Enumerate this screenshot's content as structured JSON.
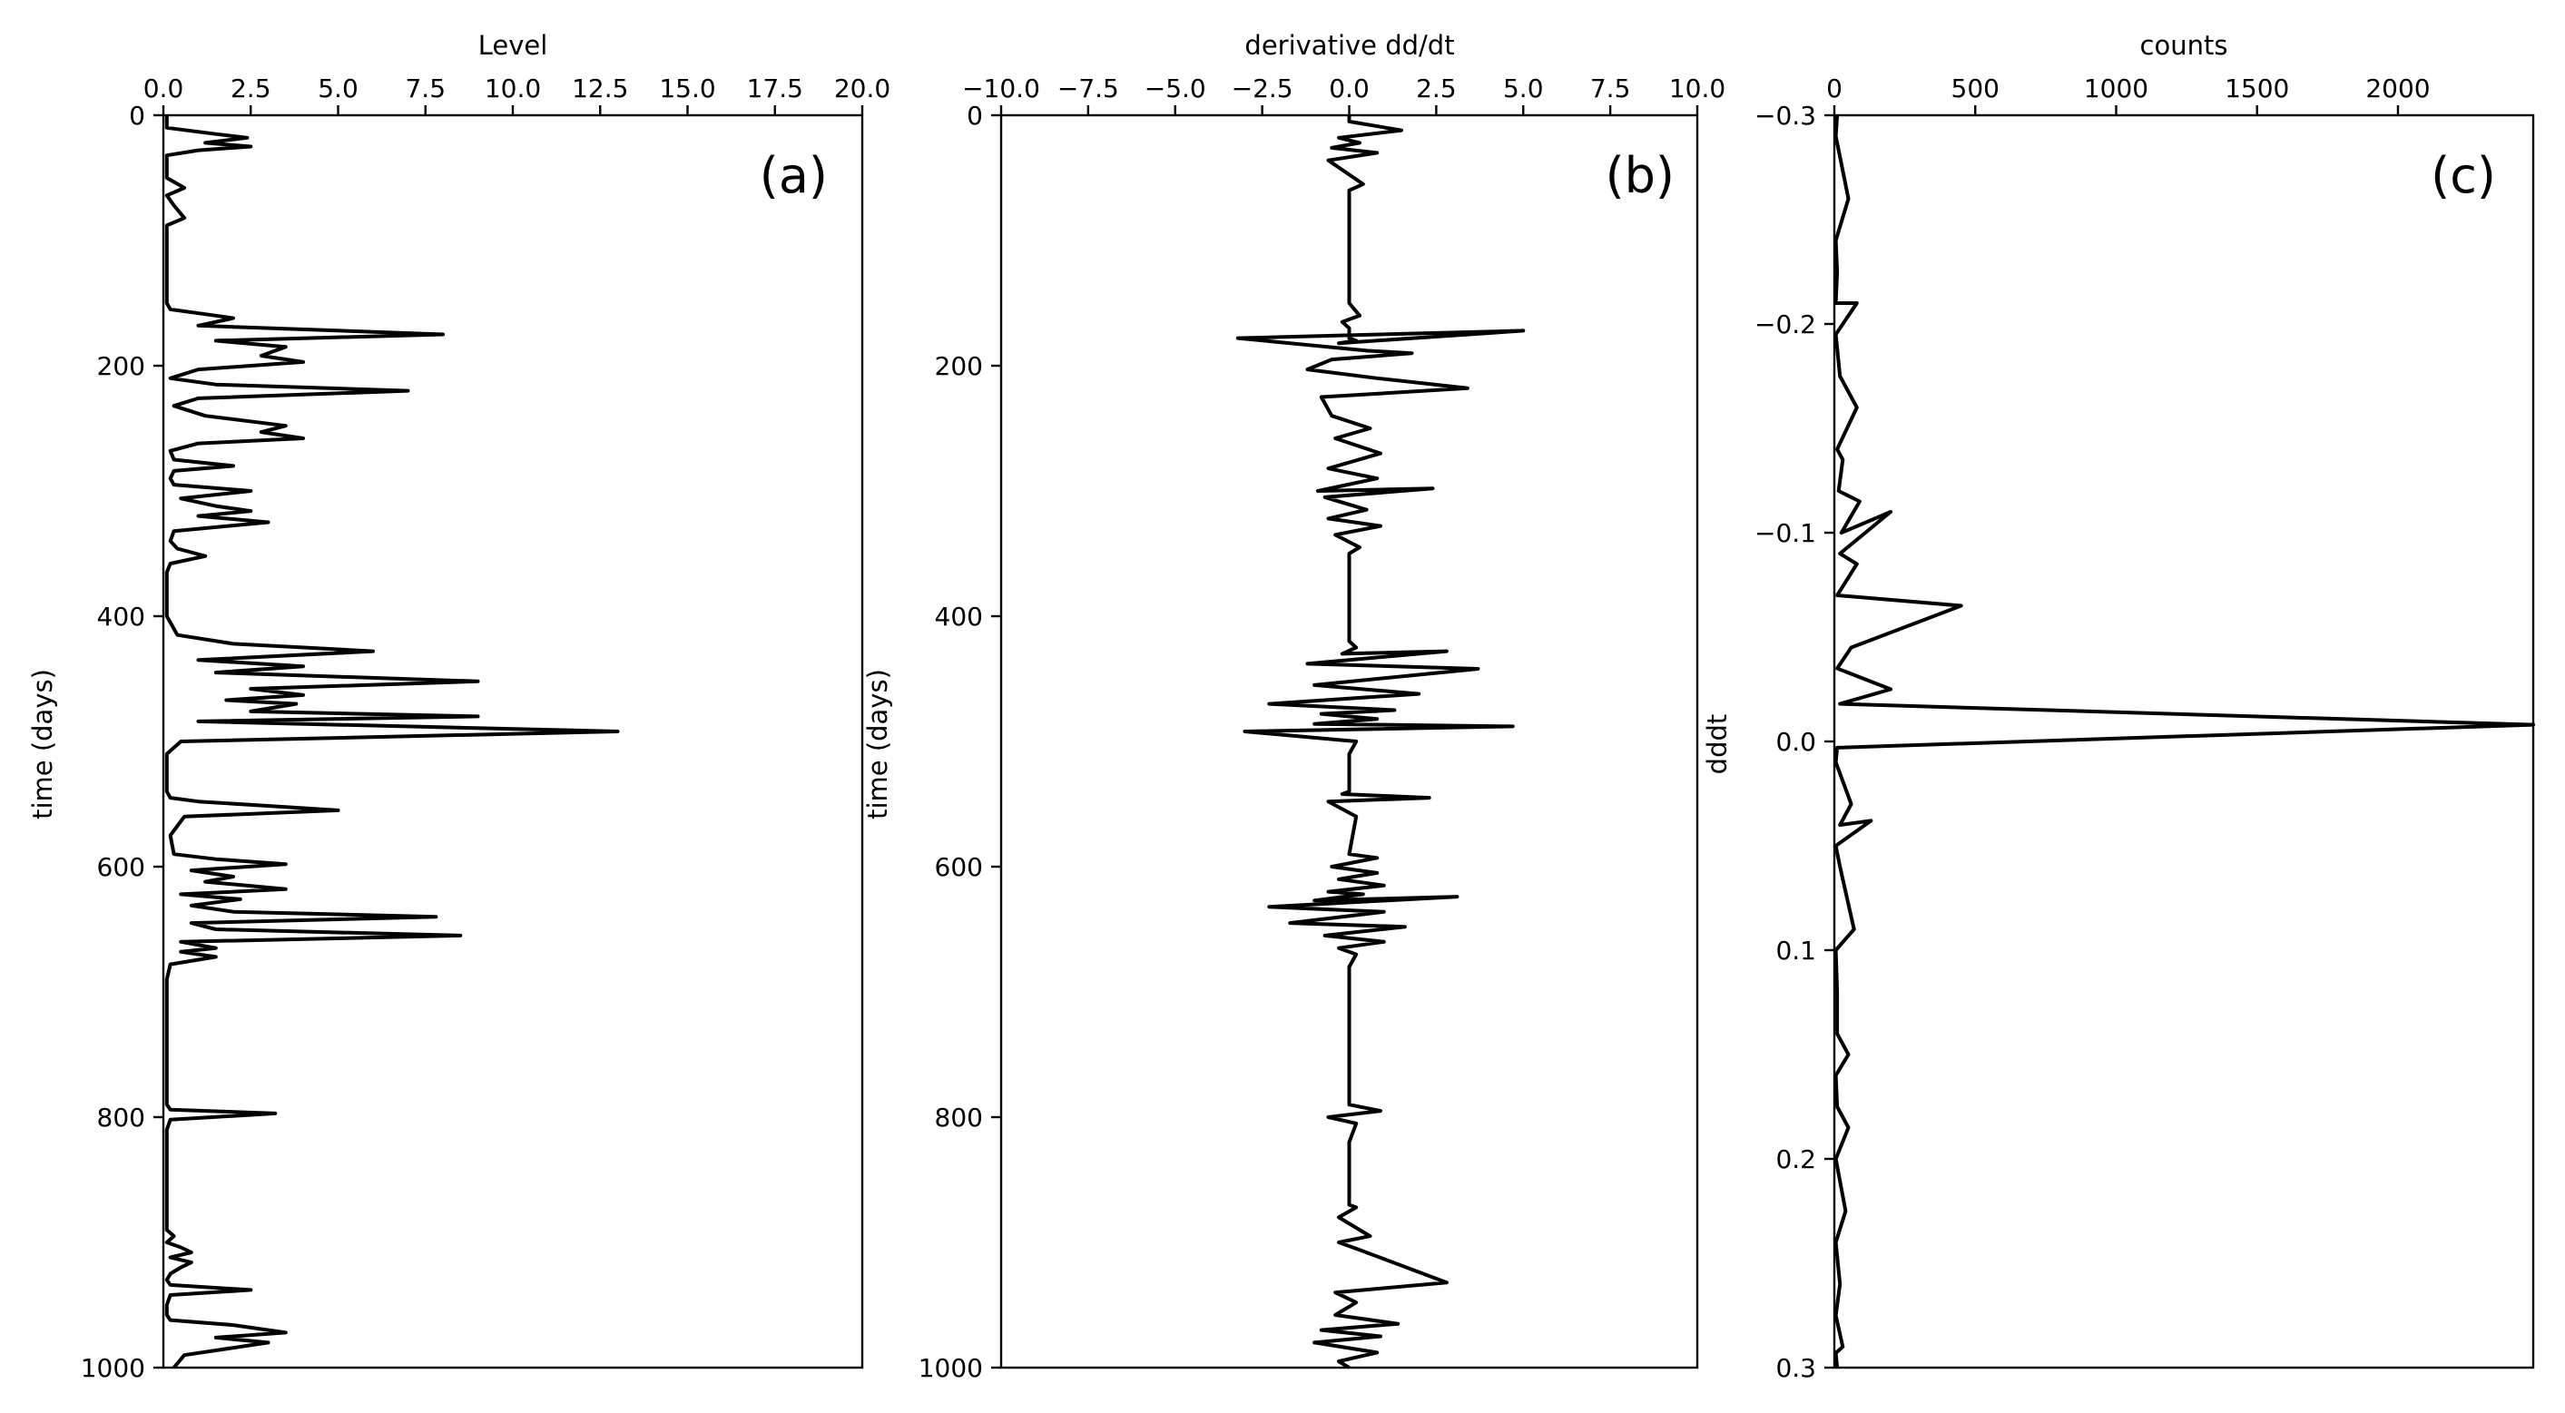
{
  "chart_data": [
    {
      "type": "line",
      "panel_label": "(a)",
      "xlabel": "Level",
      "ylabel": "time (days)",
      "xlim": [
        0,
        20
      ],
      "ylim": [
        0,
        1000
      ],
      "y_inverted": true,
      "x_ticks": [
        0,
        2.5,
        5,
        7.5,
        10,
        12.5,
        15,
        17.5,
        20
      ],
      "x_tick_labels": [
        "0.0",
        "2.5",
        "5.0",
        "7.5",
        "10.0",
        "12.5",
        "15.0",
        "17.5",
        "20.0"
      ],
      "y_ticks": [
        0,
        200,
        400,
        600,
        800,
        1000
      ],
      "y_tick_labels": [
        "0",
        "200",
        "400",
        "600",
        "800",
        "1000"
      ],
      "series": [
        {
          "x": [
            0.1,
            0.1,
            1.5,
            2.4,
            1.2,
            2.5,
            1.0,
            0.1,
            0.1,
            0.6,
            0.1,
            0.3,
            0.6,
            0.1,
            0.1,
            0.1,
            0.1,
            0.1,
            0.2,
            1.5,
            2.0,
            1.0,
            8.0,
            1.5,
            3.5,
            2.8,
            4.0,
            1.0,
            0.2,
            1.5,
            7.0,
            1.0,
            0.3,
            1.2,
            3.5,
            2.8,
            4.0,
            1.0,
            0.2,
            0.3,
            2.0,
            0.3,
            0.2,
            0.3,
            2.5,
            0.5,
            1.5,
            2.5,
            1.0,
            3.0,
            0.3,
            0.2,
            0.4,
            1.2,
            0.2,
            0.1,
            0.1,
            0.4,
            2.0,
            6.0,
            1.0,
            4.0,
            1.5,
            9.0,
            2.5,
            4.0,
            1.8,
            3.8,
            2.5,
            9.0,
            1.0,
            13.0,
            0.5,
            0.1,
            0.1,
            0.1,
            0.1,
            0.2,
            1.0,
            5.0,
            0.6,
            0.2,
            0.3,
            1.5,
            3.5,
            0.8,
            2.0,
            1.2,
            3.5,
            0.5,
            2.2,
            0.8,
            2.0,
            7.8,
            0.8,
            1.5,
            8.5,
            0.5,
            1.5,
            0.5,
            1.5,
            0.2,
            0.1,
            0.1,
            0.1,
            0.1,
            0.2,
            3.2,
            0.2,
            0.1,
            0.1,
            0.1,
            0.1,
            0.1,
            0.3,
            0.1,
            0.5,
            0.8,
            0.2,
            0.8,
            0.5,
            0.2,
            0.1,
            0.2,
            2.5,
            0.2,
            0.1,
            0.1,
            0.2,
            2.0,
            3.5,
            1.5,
            3.0,
            0.6,
            0.3
          ],
          "y": [
            0,
            10,
            15,
            18,
            22,
            25,
            28,
            32,
            50,
            58,
            64,
            72,
            82,
            88,
            100,
            120,
            140,
            150,
            155,
            160,
            162,
            168,
            175,
            180,
            185,
            192,
            197,
            203,
            210,
            215,
            220,
            226,
            232,
            240,
            248,
            253,
            258,
            262,
            268,
            275,
            280,
            284,
            290,
            295,
            300,
            306,
            312,
            316,
            320,
            325,
            332,
            340,
            346,
            352,
            358,
            365,
            400,
            415,
            422,
            428,
            435,
            440,
            445,
            452,
            458,
            463,
            467,
            470,
            476,
            480,
            484,
            492,
            500,
            510,
            520,
            530,
            540,
            545,
            548,
            555,
            560,
            575,
            590,
            594,
            598,
            603,
            608,
            612,
            618,
            622,
            626,
            631,
            636,
            640,
            645,
            650,
            655,
            660,
            665,
            668,
            672,
            678,
            690,
            700,
            785,
            790,
            794,
            797,
            802,
            810,
            830,
            865,
            880,
            890,
            895,
            900,
            904,
            908,
            912,
            916,
            920,
            925,
            930,
            934,
            938,
            942,
            950,
            958,
            962,
            966,
            972,
            976,
            980,
            990,
            1000
          ]
        }
      ]
    },
    {
      "type": "line",
      "panel_label": "(b)",
      "xlabel": "derivative dd/dt",
      "ylabel": "time (days)",
      "xlim": [
        -10,
        10
      ],
      "ylim": [
        0,
        1000
      ],
      "y_inverted": true,
      "x_ticks": [
        -10,
        -7.5,
        -5,
        -2.5,
        0,
        2.5,
        5,
        7.5,
        10
      ],
      "x_tick_labels": [
        "−10.0",
        "−7.5",
        "−5.0",
        "−2.5",
        "0.0",
        "2.5",
        "5.0",
        "7.5",
        "10.0"
      ],
      "y_ticks": [
        0,
        200,
        400,
        600,
        800,
        1000
      ],
      "y_tick_labels": [
        "0",
        "200",
        "400",
        "600",
        "800",
        "1000"
      ],
      "series": [
        {
          "x": [
            0,
            0,
            1.5,
            -0.3,
            0.3,
            -0.5,
            0.8,
            -0.6,
            0.4,
            0,
            0,
            0.3,
            -0.2,
            0,
            0,
            0,
            0.2,
            -0.3,
            5.0,
            -3.2,
            0.5,
            1.8,
            -0.5,
            -1.2,
            0.8,
            3.4,
            -0.8,
            -0.5,
            0.6,
            -0.4,
            0.9,
            -0.6,
            0.8,
            -0.9,
            2.4,
            -0.7,
            0.5,
            -0.6,
            0.9,
            -0.4,
            0.3,
            0,
            0,
            0.2,
            -0.2,
            2.8,
            -1.2,
            3.7,
            -1.0,
            2.0,
            -2.3,
            1.3,
            -0.8,
            0.8,
            -1.0,
            4.7,
            -3.0,
            0.2,
            0,
            0,
            -0.2,
            2.3,
            -0.6,
            0.2,
            0,
            0.8,
            -0.5,
            0.8,
            -0.3,
            1.0,
            -0.6,
            0.4,
            -1.0,
            3.1,
            -2.3,
            1.0,
            -1.7,
            1.6,
            -0.7,
            1.0,
            -0.3,
            0.2,
            0,
            0,
            0.9,
            -0.6,
            0.2,
            0,
            0,
            0.2,
            -0.3,
            0.6,
            -0.3,
            0.2,
            2.8,
            -0.4,
            0.2,
            -0.4,
            1.4,
            -0.8,
            0.9,
            -1.0,
            0.8,
            -0.3,
            0
          ],
          "y": [
            0,
            5,
            12,
            18,
            22,
            26,
            30,
            36,
            55,
            60,
            150,
            160,
            165,
            170,
            175,
            178,
            180,
            182,
            172,
            178,
            188,
            190,
            195,
            203,
            210,
            218,
            225,
            240,
            250,
            258,
            270,
            282,
            290,
            300,
            298,
            305,
            315,
            322,
            328,
            335,
            345,
            350,
            420,
            425,
            430,
            428,
            438,
            442,
            455,
            462,
            470,
            475,
            478,
            482,
            486,
            488,
            492,
            500,
            510,
            540,
            542,
            545,
            548,
            560,
            590,
            593,
            600,
            605,
            610,
            615,
            620,
            622,
            627,
            624,
            632,
            636,
            645,
            648,
            655,
            660,
            665,
            670,
            680,
            790,
            795,
            800,
            805,
            820,
            870,
            872,
            880,
            895,
            900,
            905,
            932,
            940,
            948,
            958,
            965,
            970,
            975,
            980,
            988,
            995,
            1000
          ]
        }
      ]
    },
    {
      "type": "line",
      "panel_label": "(c)",
      "xlabel": "counts",
      "ylabel": "dddt",
      "xlim": [
        0,
        2480
      ],
      "ylim": [
        -0.3,
        0.3
      ],
      "y_inverted": true,
      "x_ticks": [
        0,
        500,
        1000,
        1500,
        2000
      ],
      "x_tick_labels": [
        "0",
        "500",
        "1000",
        "1500",
        "2000"
      ],
      "y_ticks": [
        -0.3,
        -0.2,
        -0.1,
        0.0,
        0.1,
        0.2,
        0.3
      ],
      "y_tick_labels": [
        "−0.3",
        "−0.2",
        "−0.1",
        "0.0",
        "0.1",
        "0.2",
        "0.3"
      ],
      "series": [
        {
          "x": [
            10,
            5,
            50,
            5,
            10,
            5,
            80,
            5,
            20,
            80,
            10,
            30,
            15,
            90,
            25,
            200,
            20,
            80,
            10,
            450,
            60,
            10,
            200,
            20,
            2480,
            10,
            5,
            60,
            20,
            130,
            5,
            20,
            70,
            5,
            10,
            10,
            50,
            5,
            10,
            50,
            5,
            40,
            5,
            20,
            5,
            30,
            5,
            10
          ],
          "y": [
            -0.3,
            -0.29,
            -0.26,
            -0.24,
            -0.225,
            -0.21,
            -0.21,
            -0.195,
            -0.175,
            -0.16,
            -0.14,
            -0.135,
            -0.12,
            -0.115,
            -0.1,
            -0.11,
            -0.09,
            -0.085,
            -0.07,
            -0.065,
            -0.045,
            -0.035,
            -0.025,
            -0.018,
            -0.008,
            0.003,
            0.01,
            0.03,
            0.04,
            0.038,
            0.05,
            0.06,
            0.09,
            0.1,
            0.12,
            0.14,
            0.15,
            0.16,
            0.175,
            0.185,
            0.2,
            0.225,
            0.24,
            0.26,
            0.275,
            0.29,
            0.293,
            0.3
          ]
        }
      ]
    }
  ]
}
